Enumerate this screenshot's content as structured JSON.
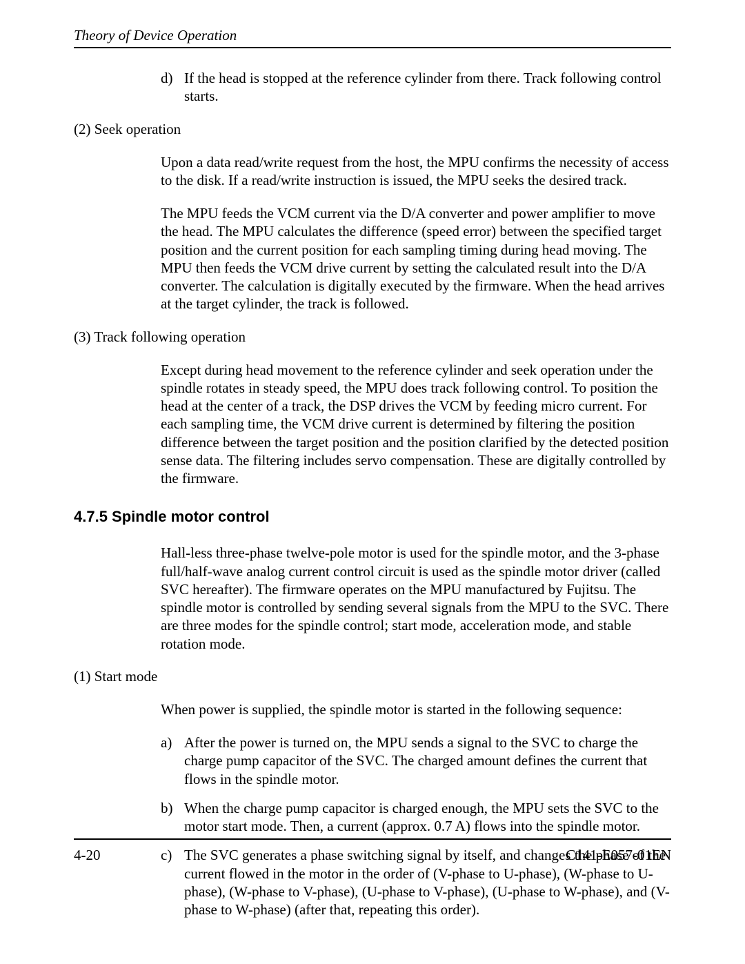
{
  "header": {
    "running_head": "Theory of Device Operation"
  },
  "section_d": {
    "marker": "d)",
    "text": "If the head is stopped at the reference cylinder from there.  Track following control starts."
  },
  "item2": {
    "label": "(2)  Seek operation",
    "p1": "Upon a data read/write request from the host, the MPU confirms the necessity of access to the disk.  If a read/write instruction is issued, the MPU seeks the desired track.",
    "p2": "The MPU feeds the VCM current via the D/A converter and power amplifier to move the head.  The MPU calculates the difference (speed error) between the specified target position and the current position for each sampling timing during head moving.  The MPU then feeds the VCM drive current by setting the calculated result into the D/A converter.  The calculation is digitally executed by the firmware.  When the head arrives at the target cylinder, the track is followed."
  },
  "item3": {
    "label": "(3)  Track following operation",
    "p1": "Except during head movement to the reference cylinder and seek operation under the spindle rotates in steady speed, the MPU does track following control.  To position the head at the center of a track, the DSP drives the VCM by feeding micro current.  For each sampling time, the VCM drive current is determined by filtering the position difference between the target position and the position clarified by the detected position sense data.  The filtering includes servo compensation.  These are digitally controlled by the firmware."
  },
  "spindle": {
    "heading": "4.7.5  Spindle motor control",
    "intro": "Hall-less three-phase twelve-pole motor is used for the spindle motor, and the 3-phase full/half-wave analog current control circuit is used as the spindle motor driver (called SVC hereafter).  The firmware operates on the MPU manufactured by Fujitsu.  The spindle motor is controlled by sending several signals from the MPU to the SVC.  There are three modes for the spindle control; start mode, acceleration mode, and stable rotation mode."
  },
  "start_mode": {
    "label": "(1)  Start mode",
    "intro": "When power is supplied, the spindle motor is started in the following sequence:",
    "a_marker": "a)",
    "a_text": "After the power is turned on, the MPU sends a signal to the SVC to charge the charge pump capacitor of the SVC.  The charged amount defines the current that flows in the spindle motor.",
    "b_marker": "b)",
    "b_text": "When the charge pump capacitor is charged enough, the MPU sets the SVC to the motor start mode.  Then, a current (approx. 0.7 A) flows into the spindle motor.",
    "c_marker": "c)",
    "c_text": "The SVC generates a phase switching signal by itself, and changes the phase of the current flowed in the motor in the order of (V-phase to U-phase),  (W-phase to U-phase), (W-phase to V-phase), (U-phase to V-phase), (U-phase to W-phase), and (V-phase to W-phase) (after that, repeating this order)."
  },
  "footer": {
    "page": "4-20",
    "docid": "C141-E057-01EN"
  }
}
